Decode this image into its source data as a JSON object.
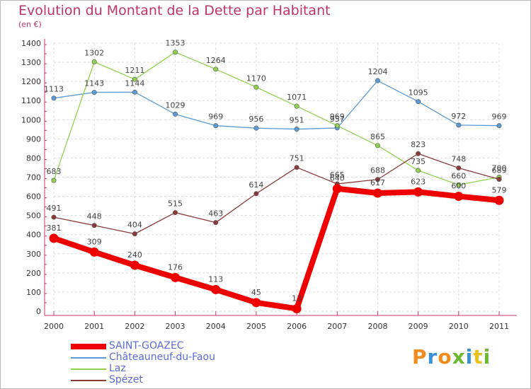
{
  "title": "Evolution du Montant de la Dette par Habitant",
  "subtitle": "(en €)",
  "logo": {
    "text": "Proxiti",
    "colors": [
      "#f28c1e",
      "#3a8fd6",
      "#f28c1e",
      "#6bb82e",
      "#3a8fd6",
      "#e8c21a",
      "#6bb82e"
    ]
  },
  "chart_data": {
    "type": "line",
    "x": [
      "2000",
      "2001",
      "2002",
      "2003",
      "2004",
      "2005",
      "2006",
      "2007",
      "2008",
      "2009",
      "2010",
      "2011"
    ],
    "ylim": [
      0,
      1400
    ],
    "yticks": [
      0,
      100,
      200,
      300,
      400,
      500,
      600,
      700,
      800,
      900,
      1000,
      1100,
      1200,
      1300,
      1400
    ],
    "grid": true,
    "legend_position": "bottom-left",
    "series": [
      {
        "name": "SAINT-GOAZEC",
        "color": "#ee0000",
        "values": [
          381,
          309,
          240,
          176,
          113,
          45,
          13,
          640,
          617,
          623,
          600,
          579
        ],
        "labels": [
          "381",
          "309",
          "240",
          "176",
          "113",
          "45",
          "13",
          "640",
          "617",
          "623",
          "600",
          "579"
        ]
      },
      {
        "name": "Châteauneuf-du-Faou",
        "color": "#5b9bd5",
        "values": [
          1113,
          1143,
          1144,
          1029,
          969,
          956,
          951,
          957,
          1204,
          1095,
          972,
          969
        ],
        "labels": [
          "1113",
          "1143",
          "1144",
          "1029",
          "969",
          "956",
          "951",
          "957",
          "1204",
          "1095",
          "972",
          "969"
        ]
      },
      {
        "name": "Laz",
        "color": "#8fd14f",
        "values": [
          683,
          1302,
          1211,
          1353,
          1264,
          1170,
          1071,
          969,
          865,
          735,
          660,
          700
        ],
        "labels": [
          "683",
          "1302",
          "1211",
          "1353",
          "1264",
          "1170",
          "1071",
          "969",
          "865",
          "735",
          "660",
          "700"
        ]
      },
      {
        "name": "Spézet",
        "color": "#8b3a3a",
        "values": [
          491,
          448,
          404,
          515,
          463,
          614,
          751,
          665,
          688,
          823,
          748,
          689
        ],
        "labels": [
          "491",
          "448",
          "404",
          "515",
          "463",
          "614",
          "751",
          "665",
          "688",
          "823",
          "748",
          "689"
        ]
      }
    ]
  }
}
